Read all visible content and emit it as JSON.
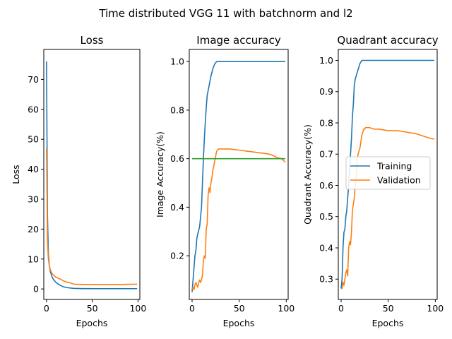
{
  "title": "Time distributed VGG 11 with batchnorm and l2",
  "colors": {
    "training": "#1f77b4",
    "validation": "#ff7f0e",
    "baseline": "#2ca02c"
  },
  "chart_data": [
    {
      "type": "line",
      "title": "Loss",
      "xlabel": "Epochs",
      "ylabel": "Loss",
      "xlim": [
        -3,
        102
      ],
      "ylim": [
        -3.5,
        80
      ],
      "xticks": [
        0,
        50,
        100
      ],
      "yticks": [
        0,
        10,
        20,
        30,
        40,
        50,
        60,
        70
      ],
      "series": [
        {
          "color": "training",
          "x": [
            0,
            1,
            2,
            3,
            4,
            5,
            6,
            8,
            10,
            12,
            15,
            18,
            20,
            25,
            30,
            40,
            50,
            60,
            70,
            80,
            90,
            99
          ],
          "y": [
            76,
            25,
            12,
            8,
            6,
            5,
            4,
            3,
            2.3,
            1.8,
            1.2,
            0.8,
            0.6,
            0.35,
            0.2,
            0.12,
            0.1,
            0.1,
            0.1,
            0.1,
            0.1,
            0.1
          ]
        },
        {
          "color": "validation",
          "x": [
            0,
            1,
            2,
            3,
            4,
            5,
            6,
            8,
            10,
            12,
            15,
            18,
            20,
            25,
            28,
            30,
            40,
            50,
            60,
            70,
            80,
            90,
            99
          ],
          "y": [
            47,
            16,
            10,
            8,
            6.5,
            5.8,
            5.2,
            4.5,
            4,
            3.7,
            3.3,
            2.8,
            2.5,
            2.1,
            1.8,
            1.6,
            1.5,
            1.5,
            1.5,
            1.5,
            1.5,
            1.55,
            1.6
          ]
        }
      ]
    },
    {
      "type": "line",
      "title": "Image accuracy",
      "xlabel": "Epochs",
      "ylabel": "Image Accuracy(%)",
      "xlim": [
        -3,
        102
      ],
      "ylim": [
        0.02,
        1.05
      ],
      "xticks": [
        0,
        50,
        100
      ],
      "yticks": [
        0.2,
        0.4,
        0.6,
        0.8,
        1.0
      ],
      "series": [
        {
          "color": "training",
          "x": [
            0,
            2,
            3,
            4,
            5,
            6,
            8,
            10,
            11,
            12,
            13,
            14,
            15,
            16,
            17,
            18,
            20,
            22,
            24,
            26,
            28,
            30,
            40,
            50,
            60,
            70,
            80,
            90,
            99
          ],
          "y": [
            0.05,
            0.15,
            0.2,
            0.22,
            0.27,
            0.29,
            0.32,
            0.4,
            0.5,
            0.6,
            0.68,
            0.75,
            0.81,
            0.86,
            0.88,
            0.9,
            0.94,
            0.97,
            0.99,
            1.0,
            1.0,
            1.0,
            1.0,
            1.0,
            1.0,
            1.0,
            1.0,
            1.0,
            1.0
          ]
        },
        {
          "color": "validation",
          "x": [
            0,
            1,
            2,
            3,
            4,
            5,
            6,
            7,
            8,
            9,
            10,
            11,
            12,
            13,
            14,
            15,
            16,
            17,
            18,
            19,
            20,
            21,
            22,
            23,
            24,
            25,
            26,
            28,
            30,
            35,
            40,
            50,
            60,
            70,
            80,
            85,
            90,
            95,
            99
          ],
          "y": [
            0.06,
            0.07,
            0.06,
            0.08,
            0.09,
            0.08,
            0.07,
            0.09,
            0.1,
            0.09,
            0.1,
            0.12,
            0.18,
            0.2,
            0.19,
            0.31,
            0.33,
            0.45,
            0.48,
            0.46,
            0.5,
            0.52,
            0.55,
            0.57,
            0.59,
            0.61,
            0.63,
            0.64,
            0.64,
            0.64,
            0.64,
            0.635,
            0.63,
            0.625,
            0.62,
            0.615,
            0.605,
            0.6,
            0.585
          ]
        },
        {
          "color": "baseline",
          "x": [
            0,
            99
          ],
          "y": [
            0.6,
            0.6
          ]
        }
      ]
    },
    {
      "type": "line",
      "title": "Quadrant accuracy",
      "xlabel": "Epochs",
      "ylabel": "Quadrant Accuracy(%)",
      "xlim": [
        -3,
        102
      ],
      "ylim": [
        0.235,
        1.035
      ],
      "xticks": [
        0,
        50,
        100
      ],
      "yticks": [
        0.3,
        0.4,
        0.5,
        0.6,
        0.7,
        0.8,
        0.9,
        1.0
      ],
      "legend": {
        "position": "center-right",
        "entries": [
          {
            "label": "Training",
            "color": "training"
          },
          {
            "label": "Validation",
            "color": "validation"
          }
        ]
      },
      "series": [
        {
          "color": "training",
          "x": [
            0,
            1,
            2,
            3,
            4,
            5,
            6,
            7,
            8,
            9,
            10,
            11,
            12,
            13,
            14,
            15,
            16,
            17,
            18,
            19,
            20,
            22,
            24,
            26,
            28,
            30,
            40,
            50,
            60,
            70,
            80,
            90,
            99
          ],
          "y": [
            0.27,
            0.3,
            0.4,
            0.45,
            0.46,
            0.5,
            0.52,
            0.56,
            0.6,
            0.65,
            0.7,
            0.75,
            0.82,
            0.86,
            0.92,
            0.94,
            0.95,
            0.96,
            0.97,
            0.98,
            0.99,
            1.0,
            1.0,
            1.0,
            1.0,
            1.0,
            1.0,
            1.0,
            1.0,
            1.0,
            1.0,
            1.0,
            1.0
          ]
        },
        {
          "color": "validation",
          "x": [
            0,
            1,
            2,
            3,
            4,
            5,
            6,
            7,
            8,
            9,
            10,
            11,
            12,
            13,
            14,
            15,
            16,
            17,
            18,
            19,
            20,
            21,
            22,
            23,
            24,
            25,
            26,
            28,
            30,
            35,
            40,
            50,
            60,
            70,
            80,
            90,
            95,
            99
          ],
          "y": [
            0.27,
            0.27,
            0.29,
            0.28,
            0.3,
            0.32,
            0.33,
            0.31,
            0.4,
            0.42,
            0.41,
            0.45,
            0.52,
            0.54,
            0.56,
            0.6,
            0.63,
            0.68,
            0.7,
            0.71,
            0.72,
            0.74,
            0.76,
            0.77,
            0.78,
            0.78,
            0.785,
            0.785,
            0.785,
            0.78,
            0.78,
            0.775,
            0.775,
            0.77,
            0.765,
            0.755,
            0.75,
            0.748
          ]
        }
      ]
    }
  ]
}
